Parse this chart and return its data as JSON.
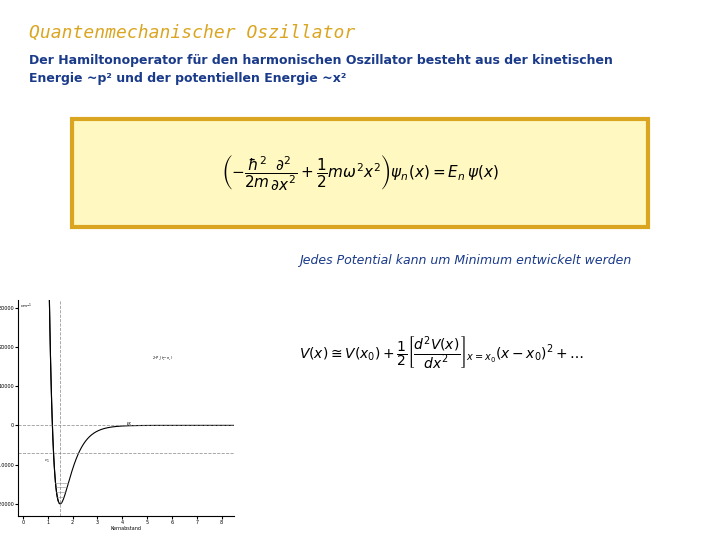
{
  "title": "Quantenmechanischer Oszillator",
  "title_color": "#DAA520",
  "title_fontsize": 13,
  "body_text": "Der Hamiltonoperator für den harmonischen Oszillator besteht aus der kinetischen\nEnergie ~p² und der potentiellen Energie ~x²",
  "body_color": "#1a3a8a",
  "body_fontsize": 9,
  "eq1_latex": "$\\left(-\\dfrac{\\hbar^2}{2m}\\dfrac{\\partial^2}{\\partial x^2} + \\dfrac{1}{2}m\\omega^2 x^2\\right)\\psi_n(x) = E_n\\,\\psi(x)$",
  "eq1_box_color": "#FFF8C0",
  "eq1_box_border": "#DAA520",
  "side_text": "Jedes Potential kann um Minimum entwickelt werden",
  "side_text_color": "#1a3a8a",
  "side_text_fontsize": 9,
  "eq2_latex": "$V(x) \\cong V(x_0) + \\dfrac{1}{2}\\left[\\dfrac{d^2V(x)}{dx^2}\\right]_{x=x_0}(x-x_0)^2 + \\ldots$",
  "bg_color": "#ffffff"
}
